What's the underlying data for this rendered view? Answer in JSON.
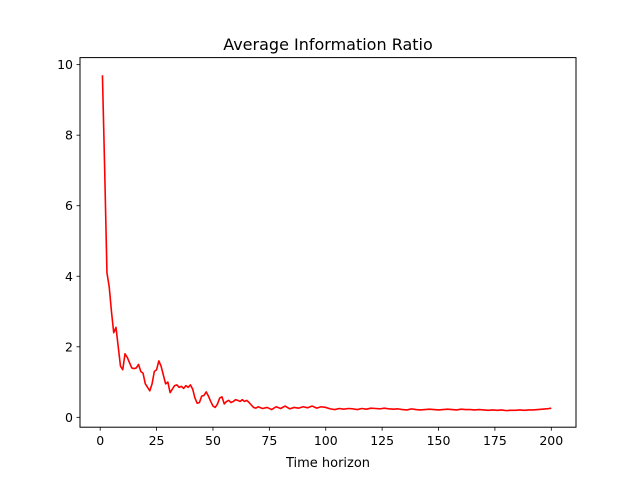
{
  "chart_data": {
    "type": "line",
    "title": "Average Information Ratio",
    "xlabel": "Time horizon",
    "ylabel": "",
    "xlim": [
      -8.95,
      210.95
    ],
    "ylim": [
      -0.28,
      10.2
    ],
    "xticks": [
      0,
      25,
      50,
      75,
      100,
      125,
      150,
      175,
      200
    ],
    "yticks": [
      0,
      2,
      4,
      6,
      8,
      10
    ],
    "grid": false,
    "legend": "none",
    "series": [
      {
        "color": "#ff0000",
        "x": [
          1,
          2,
          3,
          4,
          5,
          6,
          7,
          8,
          9,
          10,
          11,
          12,
          13,
          14,
          15,
          16,
          17,
          18,
          19,
          20,
          21,
          22,
          23,
          24,
          25,
          26,
          27,
          28,
          29,
          30,
          31,
          32,
          33,
          34,
          35,
          36,
          37,
          38,
          39,
          40,
          41,
          42,
          43,
          44,
          45,
          46,
          47,
          48,
          49,
          50,
          51,
          52,
          53,
          54,
          55,
          56,
          57,
          58,
          59,
          60,
          61,
          62,
          63,
          64,
          65,
          66,
          67,
          68,
          69,
          70,
          72,
          74,
          76,
          78,
          80,
          82,
          84,
          86,
          88,
          90,
          92,
          94,
          96,
          98,
          100,
          102,
          104,
          106,
          108,
          110,
          112,
          114,
          116,
          118,
          120,
          122,
          124,
          126,
          128,
          130,
          132,
          134,
          136,
          138,
          140,
          142,
          144,
          146,
          148,
          150,
          152,
          154,
          156,
          158,
          160,
          162,
          164,
          166,
          168,
          170,
          172,
          174,
          176,
          178,
          180,
          182,
          184,
          186,
          188,
          190,
          192,
          194,
          196,
          198,
          200
        ],
        "y": [
          9.7,
          7.0,
          4.1,
          3.7,
          3.0,
          2.4,
          2.55,
          2.0,
          1.45,
          1.35,
          1.8,
          1.7,
          1.55,
          1.4,
          1.38,
          1.4,
          1.5,
          1.3,
          1.25,
          0.95,
          0.85,
          0.75,
          0.95,
          1.3,
          1.35,
          1.6,
          1.45,
          1.2,
          0.95,
          1.0,
          0.7,
          0.8,
          0.9,
          0.92,
          0.85,
          0.88,
          0.82,
          0.9,
          0.85,
          0.92,
          0.8,
          0.55,
          0.4,
          0.42,
          0.6,
          0.62,
          0.72,
          0.6,
          0.45,
          0.32,
          0.28,
          0.38,
          0.55,
          0.58,
          0.38,
          0.45,
          0.48,
          0.42,
          0.45,
          0.5,
          0.48,
          0.45,
          0.5,
          0.45,
          0.48,
          0.42,
          0.35,
          0.28,
          0.26,
          0.3,
          0.25,
          0.28,
          0.22,
          0.3,
          0.25,
          0.32,
          0.24,
          0.28,
          0.26,
          0.3,
          0.27,
          0.32,
          0.26,
          0.3,
          0.28,
          0.24,
          0.22,
          0.25,
          0.23,
          0.25,
          0.24,
          0.22,
          0.25,
          0.23,
          0.26,
          0.25,
          0.24,
          0.26,
          0.24,
          0.23,
          0.24,
          0.22,
          0.21,
          0.24,
          0.22,
          0.21,
          0.22,
          0.23,
          0.22,
          0.21,
          0.22,
          0.23,
          0.22,
          0.21,
          0.23,
          0.22,
          0.22,
          0.21,
          0.22,
          0.21,
          0.2,
          0.21,
          0.2,
          0.21,
          0.19,
          0.2,
          0.2,
          0.21,
          0.2,
          0.21,
          0.21,
          0.22,
          0.23,
          0.24,
          0.26
        ]
      }
    ]
  }
}
